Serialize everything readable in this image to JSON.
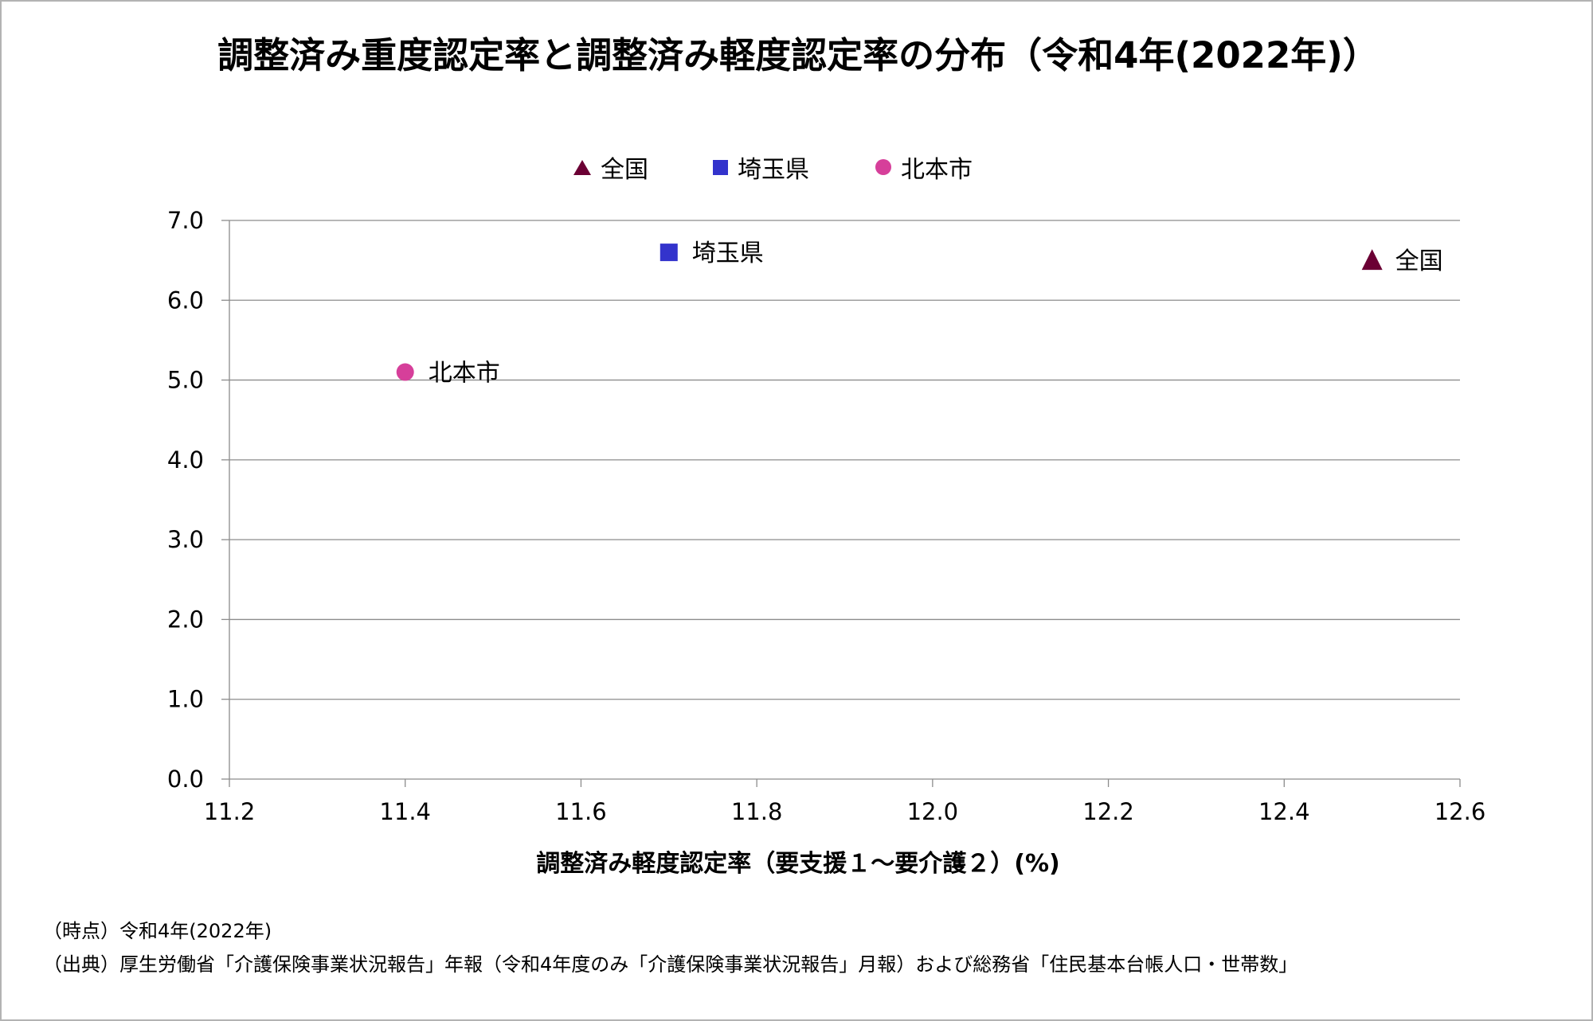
{
  "title": "調整済み重度認定率と調整済み軽度認定率の分布（令和4年(2022年)）",
  "legend": [
    {
      "label": "全国",
      "marker": "triangle",
      "color": "#6b0034"
    },
    {
      "label": "埼玉県",
      "marker": "square",
      "color": "#3333cc"
    },
    {
      "label": "北本市",
      "marker": "circle",
      "color": "#d63f9a"
    }
  ],
  "chart_data": {
    "type": "scatter",
    "title": "調整済み重度認定率と調整済み軽度認定率の分布（令和4年(2022年)）",
    "xlabel": "調整済み軽度認定率（要支援１～要介護２）(%)",
    "ylabel": "",
    "xlim": [
      11.2,
      12.6
    ],
    "ylim": [
      0.0,
      7.0
    ],
    "x_ticks": [
      "11.2",
      "11.4",
      "11.6",
      "11.8",
      "12.0",
      "12.2",
      "12.4",
      "12.6"
    ],
    "y_ticks": [
      "0.0",
      "1.0",
      "2.0",
      "3.0",
      "4.0",
      "5.0",
      "6.0",
      "7.0"
    ],
    "grid": "horizontal",
    "legend_position": "top",
    "series": [
      {
        "name": "全国",
        "marker": "triangle",
        "color": "#6b0034",
        "points": [
          {
            "x": 12.5,
            "y": 6.5,
            "label": "全国"
          }
        ]
      },
      {
        "name": "埼玉県",
        "marker": "square",
        "color": "#3333cc",
        "points": [
          {
            "x": 11.7,
            "y": 6.6,
            "label": "埼玉県"
          }
        ]
      },
      {
        "name": "北本市",
        "marker": "circle",
        "color": "#d63f9a",
        "points": [
          {
            "x": 11.4,
            "y": 5.1,
            "label": "北本市"
          }
        ]
      }
    ]
  },
  "notes": {
    "time": "（時点）令和4年(2022年)",
    "source": "（出典）厚生労働省「介護保険事業状況報告」年報（令和4年度のみ「介護保険事業状況報告」月報）および総務省「住民基本台帳人口・世帯数」"
  }
}
